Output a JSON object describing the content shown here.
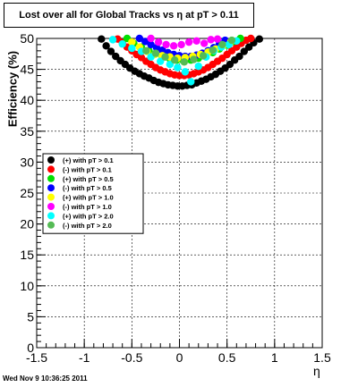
{
  "chart_data": {
    "type": "scatter",
    "title": "Lost over all for Global Tracks vs    η at pT > 0.11",
    "xlabel": "η",
    "ylabel": "Efficiency (%)",
    "xlim": [
      -1.5,
      1.5
    ],
    "ylim": [
      0,
      50
    ],
    "xticks": [
      -1.5,
      -1,
      -0.5,
      0,
      0.5,
      1,
      1.5
    ],
    "xtick_labels": [
      "-1.5",
      "-1",
      "-0.5",
      "0",
      "0.5",
      "1",
      "1.5"
    ],
    "yticks": [
      0,
      5,
      10,
      15,
      20,
      25,
      30,
      35,
      40,
      45,
      50
    ],
    "ytick_labels": [
      "0",
      "5",
      "10",
      "15",
      "20",
      "25",
      "30",
      "35",
      "40",
      "45",
      "50"
    ],
    "grid": true,
    "legend_position": "center-left",
    "series": [
      {
        "name": "(+) with pT > 0.1",
        "color": "#000000",
        "x": [
          -0.82,
          -0.77,
          -0.72,
          -0.67,
          -0.62,
          -0.57,
          -0.52,
          -0.47,
          -0.42,
          -0.37,
          -0.32,
          -0.27,
          -0.22,
          -0.17,
          -0.12,
          -0.07,
          -0.02,
          0.03,
          0.08,
          0.13,
          0.18,
          0.23,
          0.28,
          0.33,
          0.38,
          0.43,
          0.48,
          0.53,
          0.58,
          0.63,
          0.68,
          0.73,
          0.78,
          0.84
        ],
        "y": [
          49.9,
          48.8,
          47.9,
          47.1,
          46.4,
          45.8,
          45.2,
          44.7,
          44.3,
          43.9,
          43.6,
          43.2,
          42.9,
          42.7,
          42.5,
          42.4,
          42.3,
          42.3,
          42.4,
          42.5,
          42.8,
          43.1,
          43.4,
          43.8,
          44.2,
          44.7,
          45.2,
          45.8,
          46.5,
          47.1,
          47.9,
          48.6,
          49.3,
          49.9
        ]
      },
      {
        "name": "(-) with pT > 0.1",
        "color": "#ff0000",
        "x": [
          -0.65,
          -0.6,
          -0.55,
          -0.5,
          -0.45,
          -0.4,
          -0.35,
          -0.3,
          -0.25,
          -0.2,
          -0.15,
          -0.1,
          -0.05,
          0,
          0.05,
          0.1,
          0.15,
          0.2,
          0.25,
          0.3,
          0.35,
          0.4,
          0.45,
          0.5,
          0.55,
          0.6,
          0.65,
          0.7,
          0.75
        ],
        "y": [
          49.9,
          49.3,
          48.6,
          48.0,
          47.4,
          46.9,
          46.3,
          45.8,
          45.3,
          44.9,
          44.6,
          44.3,
          44.1,
          44.0,
          44.0,
          44.1,
          44.3,
          44.6,
          44.9,
          45.3,
          45.8,
          46.3,
          46.8,
          47.4,
          48.0,
          48.6,
          49.2,
          49.7,
          50.0
        ]
      },
      {
        "name": "(+) with pT > 0.5",
        "color": "#00e000",
        "x": [
          -0.55,
          -0.48,
          -0.4,
          -0.32,
          -0.25,
          -0.18,
          -0.1,
          -0.03,
          0.04,
          0.12,
          0.2,
          0.27,
          0.35,
          0.42,
          0.5,
          0.57,
          0.64
        ],
        "y": [
          50.0,
          49.2,
          48.6,
          48.0,
          47.5,
          47.0,
          46.7,
          46.5,
          46.4,
          46.5,
          46.8,
          47.2,
          47.7,
          48.3,
          48.9,
          49.5,
          50.0
        ]
      },
      {
        "name": "(-) with pT > 0.5",
        "color": "#0000ff",
        "x": [
          -0.42,
          -0.36,
          -0.3,
          -0.24,
          -0.18,
          -0.12,
          -0.06,
          0,
          0.06,
          0.12,
          0.18,
          0.24,
          0.3,
          0.36,
          0.42,
          0.48
        ],
        "y": [
          50.0,
          49.5,
          49.0,
          48.5,
          48.1,
          47.7,
          47.4,
          47.2,
          47.1,
          47.1,
          47.3,
          47.6,
          48.0,
          48.5,
          49.1,
          49.7
        ]
      },
      {
        "name": "(+) with pT > 1.0",
        "color": "#ffff00",
        "x": [
          -0.5,
          -0.42,
          -0.34,
          -0.26,
          -0.18,
          -0.1,
          -0.02,
          0.06,
          0.14,
          0.22,
          0.3,
          0.38,
          0.46,
          0.54
        ],
        "y": [
          49.4,
          48.6,
          47.9,
          47.4,
          47.2,
          47.0,
          46.8,
          46.9,
          47.1,
          47.4,
          47.8,
          48.3,
          48.9,
          49.5
        ]
      },
      {
        "name": "(-) with pT > 1.0",
        "color": "#ff00ff",
        "x": [
          -0.3,
          -0.22,
          -0.14,
          -0.06,
          0.02,
          0.1,
          0.18,
          0.26,
          0.33,
          0.4
        ],
        "y": [
          50.0,
          49.4,
          49.0,
          48.8,
          49.0,
          49.4,
          49.6,
          49.2,
          49.8,
          49.9
        ]
      },
      {
        "name": "(+) with pT > 2.0",
        "color": "#00ffff",
        "x": [
          -0.7,
          -0.6,
          -0.5,
          -0.4,
          -0.3,
          -0.2,
          -0.1,
          -0.02,
          0.06,
          0.12,
          0.2,
          0.28,
          0.36,
          0.44,
          0.52,
          0.6
        ],
        "y": [
          49.8,
          49.1,
          48.4,
          47.9,
          47.0,
          46.3,
          45.8,
          45.3,
          44.6,
          43.0,
          45.5,
          47.0,
          48.0,
          48.6,
          49.0,
          49.6
        ]
      },
      {
        "name": "(-) with pT > 2.0",
        "color": "#55bb55",
        "x": [
          -0.35,
          -0.25,
          -0.15,
          -0.05,
          0.05,
          0.15,
          0.25,
          0.35,
          0.45,
          0.55
        ],
        "y": [
          48.0,
          47.6,
          47.0,
          46.5,
          46.2,
          46.6,
          47.2,
          48.1,
          49.0,
          49.7
        ]
      }
    ]
  },
  "footer": {
    "timestamp": "Wed Nov  9 10:36:25 2011"
  }
}
